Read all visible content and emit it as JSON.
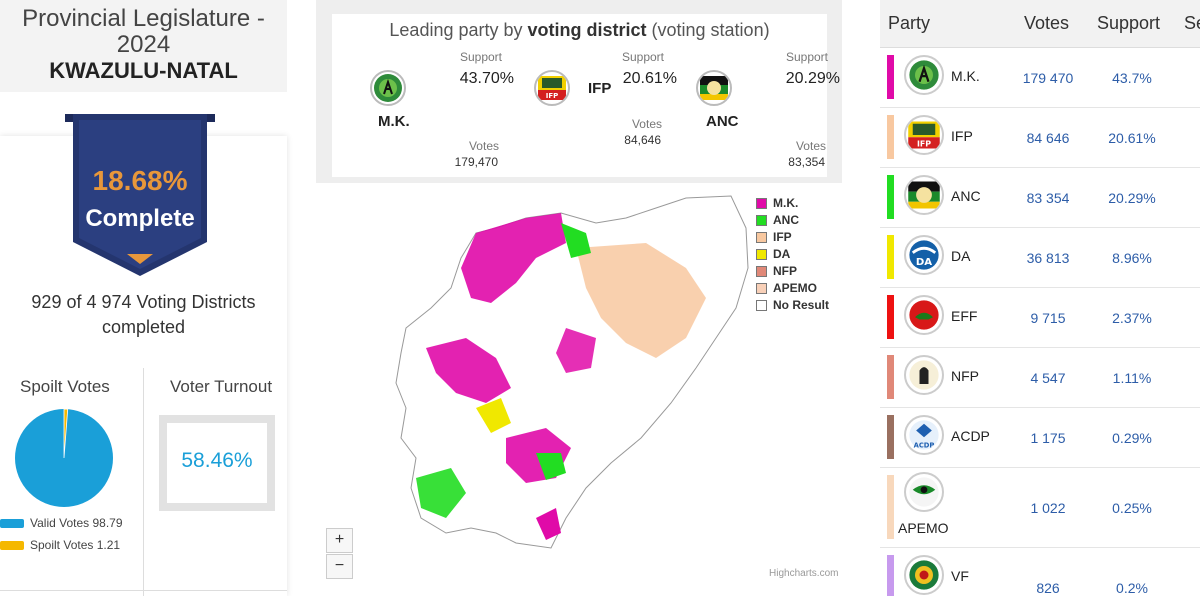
{
  "header": {
    "line1": "Provincial Legislature -",
    "line2": "2024",
    "region": "KWAZULU-NATAL"
  },
  "progress": {
    "percent_label": "18.68%",
    "complete_label": "Complete",
    "districts_line1": "929 of 4 974 Voting Districts",
    "districts_line2": "completed"
  },
  "spoilt": {
    "title": "Spoilt Votes",
    "valid_label": "Valid Votes 98.79",
    "spoilt_label": "Spoilt Votes 1.21",
    "valid_fraction": 0.9879,
    "spoilt_fraction": 0.0121,
    "valid_color": "#1a9fd8",
    "spoilt_color": "#f5b800"
  },
  "turnout": {
    "title": "Voter Turnout",
    "value": "58.46%"
  },
  "leading": {
    "title_prefix": "Leading party by ",
    "title_bold": "voting district",
    "title_suffix": " (voting station)",
    "support_label": "Support",
    "votes_label": "Votes",
    "parties": [
      {
        "name": "M.K.",
        "support": "43.70%",
        "votes": "179,470"
      },
      {
        "name": "IFP",
        "support": "20.61%",
        "votes": "84,646"
      },
      {
        "name": "ANC",
        "support": "20.29%",
        "votes": "83,354"
      }
    ]
  },
  "map": {
    "legend": [
      {
        "label": "M.K.",
        "color": "#e00aa8"
      },
      {
        "label": "ANC",
        "color": "#22dd22"
      },
      {
        "label": "IFP",
        "color": "#f8c8a0"
      },
      {
        "label": "DA",
        "color": "#f0e800"
      },
      {
        "label": "NFP",
        "color": "#e08878"
      },
      {
        "label": "APEMO",
        "color": "#f8d0b8"
      },
      {
        "label": "No Result",
        "color": "#ffffff"
      }
    ],
    "zoom_in": "+",
    "zoom_out": "−",
    "credits": "Highcharts.com"
  },
  "table": {
    "headers": [
      "Party",
      "Votes",
      "Support",
      "Se"
    ],
    "rows": [
      {
        "party": "M.K.",
        "votes": "179 470",
        "support": "43.7%",
        "color": "#e00aa8"
      },
      {
        "party": "IFP",
        "votes": "84 646",
        "support": "20.61%",
        "color": "#f8c8a0"
      },
      {
        "party": "ANC",
        "votes": "83 354",
        "support": "20.29%",
        "color": "#22dd22"
      },
      {
        "party": "DA",
        "votes": "36 813",
        "support": "8.96%",
        "color": "#f0e800"
      },
      {
        "party": "EFF",
        "votes": "9 715",
        "support": "2.37%",
        "color": "#ee1111"
      },
      {
        "party": "NFP",
        "votes": "4 547",
        "support": "1.11%",
        "color": "#e08878"
      },
      {
        "party": "ACDP",
        "votes": "1 175",
        "support": "0.29%",
        "color": "#9a7060"
      },
      {
        "party": "APEMO",
        "votes": "1 022",
        "support": "0.25%",
        "color": "#f8d8bc"
      },
      {
        "party": "VF",
        "votes": "826",
        "support": "0.2%",
        "color": "#c79aee"
      }
    ]
  }
}
